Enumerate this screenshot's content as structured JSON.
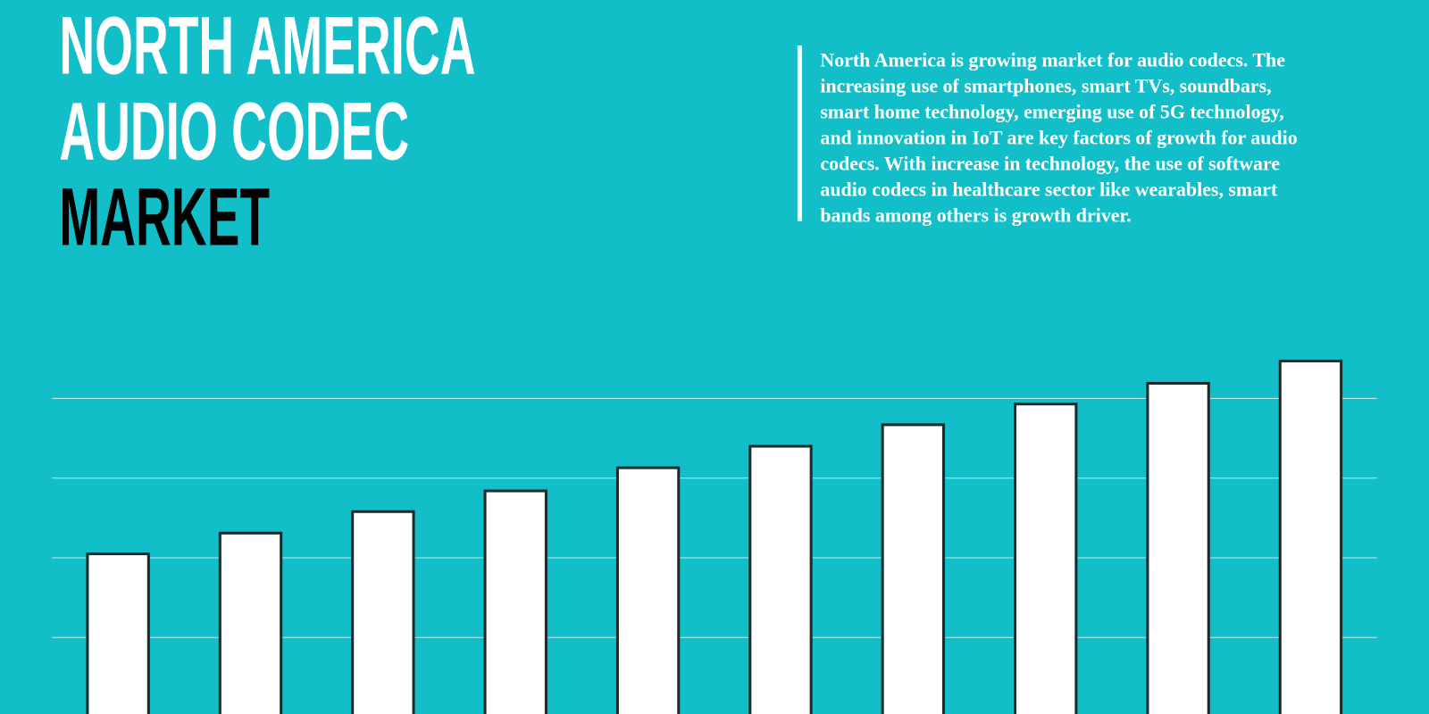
{
  "chart_data": {
    "type": "bar",
    "title_lines": [
      "NORTH AMERICA",
      "AUDIO CODEC",
      "MARKET"
    ],
    "description_lines": [
      "North America is growing market for audio codecs. The",
      "increasing use of smartphones, smart TVs, soundbars,",
      "smart home technology, emerging use of 5G technology,",
      "and innovation in IoT are key factors of growth for audio",
      "codecs. With increase in technology, the use of software",
      "audio codecs in healthcare sector like wearables, smart",
      "bands among others is growth driver."
    ],
    "categories": [
      null,
      null,
      null,
      null,
      null,
      null,
      null,
      null,
      null,
      null
    ],
    "values": [
      2.05,
      2.31,
      2.58,
      2.84,
      3.13,
      3.4,
      3.67,
      3.93,
      4.19,
      4.47
    ],
    "color": "#ffffff",
    "ylim": [
      0,
      5
    ],
    "yticks": [
      1,
      2,
      3,
      4
    ],
    "grid": true
  }
}
